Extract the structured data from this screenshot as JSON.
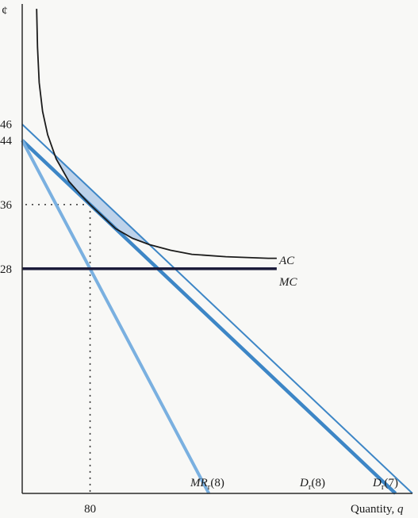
{
  "chart_data": {
    "type": "line",
    "y_unit_label": "¢",
    "x_axis_label": "Quantity, ",
    "x_axis_var": "q",
    "y_ticks": [
      46,
      44,
      36,
      28
    ],
    "x_ticks": [
      80
    ],
    "xlim": [
      0,
      460
    ],
    "ylim": [
      0,
      61
    ],
    "colors": {
      "ac": "#1b1b1b",
      "mc": "#1b1b3a",
      "demand": "#3d86c6",
      "mr": "#7ab0e0",
      "shade": "#a9c6e6",
      "guide": "#333333",
      "axis": "#2a2a2a"
    },
    "series": [
      {
        "key": "ac",
        "label_main": "AC",
        "label_sub": "",
        "points": [
          [
            17,
            60.4
          ],
          [
            18,
            55.6
          ],
          [
            20,
            51.2
          ],
          [
            24,
            47.6
          ],
          [
            30,
            44.7
          ],
          [
            40,
            41.7
          ],
          [
            55,
            38.9
          ],
          [
            70,
            37.1
          ],
          [
            80,
            36.0
          ],
          [
            90,
            35.0
          ],
          [
            110,
            33.0
          ],
          [
            130,
            31.8
          ],
          [
            150,
            31.0
          ],
          [
            175,
            30.3
          ],
          [
            200,
            29.8
          ],
          [
            240,
            29.5
          ],
          [
            290,
            29.3
          ],
          [
            300,
            29.3
          ]
        ]
      },
      {
        "key": "mc",
        "label_main": "MC",
        "label_sub": "",
        "points": [
          [
            0,
            28
          ],
          [
            300,
            28
          ]
        ]
      },
      {
        "key": "d7",
        "label_main": "D",
        "label_sub": "r",
        "label_paren": "(7)",
        "points": [
          [
            0,
            46
          ],
          [
            460,
            0
          ]
        ]
      },
      {
        "key": "d8",
        "label_main": "D",
        "label_sub": "r",
        "label_paren": "(8)",
        "points": [
          [
            0,
            44
          ],
          [
            440,
            0
          ]
        ]
      },
      {
        "key": "mr8",
        "label_main": "MR",
        "label_sub": "r",
        "label_paren": "(8)",
        "points": [
          [
            0,
            44
          ],
          [
            220,
            0
          ]
        ]
      }
    ],
    "equilibrium": {
      "x": 80,
      "y": 36
    }
  }
}
